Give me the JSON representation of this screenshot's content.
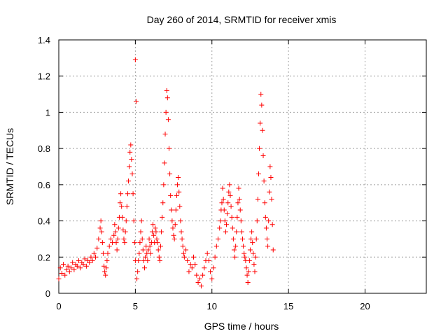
{
  "chart_data": {
    "type": "scatter",
    "title": "Day 260 of 2014, SRMTID for receiver xmis",
    "xlabel": "GPS time / hours",
    "ylabel": "SRMTID / TECUs",
    "xlim": [
      0,
      24
    ],
    "ylim": [
      0,
      1.4
    ],
    "xticks": [
      0,
      5,
      10,
      15,
      20
    ],
    "xtick_labels": [
      "0",
      "5",
      "10",
      "15",
      "20"
    ],
    "yticks": [
      0,
      0.2,
      0.4,
      0.6,
      0.8,
      1.0,
      1.2,
      1.4
    ],
    "ytick_labels": [
      "0",
      "0.2",
      "0.4",
      "0.6",
      "0.8",
      "1",
      "1.2",
      "1.4"
    ],
    "grid": true,
    "marker": "+",
    "color": "#ff0000",
    "series": [
      {
        "name": "SRMTID",
        "x": [
          0.0,
          0.1,
          0.2,
          0.3,
          0.4,
          0.5,
          0.6,
          0.7,
          0.8,
          0.9,
          1.0,
          1.1,
          1.2,
          1.3,
          1.4,
          1.5,
          1.6,
          1.7,
          1.8,
          1.9,
          2.0,
          2.1,
          2.2,
          2.3,
          2.4,
          2.5,
          2.6,
          2.7,
          2.75,
          2.8,
          2.85,
          2.9,
          2.95,
          3.0,
          3.05,
          3.1,
          3.15,
          3.2,
          3.3,
          3.4,
          3.5,
          3.6,
          3.65,
          3.7,
          3.75,
          3.8,
          3.85,
          3.9,
          3.95,
          4.0,
          4.05,
          4.1,
          4.15,
          4.2,
          4.25,
          4.3,
          4.35,
          4.4,
          4.45,
          4.5,
          4.55,
          4.6,
          4.65,
          4.7,
          4.75,
          4.8,
          4.85,
          4.9,
          4.95,
          5.0,
          5.0,
          5.05,
          5.1,
          5.15,
          5.2,
          5.25,
          5.3,
          5.35,
          5.4,
          5.45,
          5.5,
          5.55,
          5.6,
          5.65,
          5.7,
          5.75,
          5.8,
          5.85,
          5.9,
          5.95,
          6.0,
          6.05,
          6.1,
          6.15,
          6.2,
          6.25,
          6.3,
          6.35,
          6.4,
          6.45,
          6.5,
          6.55,
          6.6,
          6.65,
          6.7,
          6.75,
          6.8,
          6.85,
          6.9,
          6.95,
          7.0,
          7.05,
          7.1,
          7.15,
          7.2,
          7.25,
          7.3,
          7.35,
          7.4,
          7.45,
          7.5,
          7.55,
          7.6,
          7.65,
          7.7,
          7.75,
          7.8,
          7.85,
          7.9,
          7.95,
          8.0,
          8.05,
          8.1,
          8.15,
          8.2,
          8.3,
          8.4,
          8.5,
          8.6,
          8.7,
          8.8,
          8.9,
          9.0,
          9.1,
          9.2,
          9.3,
          9.4,
          9.5,
          9.6,
          9.7,
          9.8,
          9.9,
          10.0,
          10.1,
          10.2,
          10.3,
          10.4,
          10.5,
          10.55,
          10.6,
          10.65,
          10.7,
          10.75,
          10.8,
          10.85,
          10.9,
          10.95,
          11.0,
          11.05,
          11.1,
          11.15,
          11.2,
          11.25,
          11.3,
          11.35,
          11.4,
          11.45,
          11.5,
          11.55,
          11.6,
          11.65,
          11.7,
          11.75,
          11.8,
          11.85,
          11.9,
          11.95,
          12.0,
          12.05,
          12.1,
          12.15,
          12.2,
          12.25,
          12.3,
          12.35,
          12.4,
          12.45,
          12.5,
          12.55,
          12.6,
          12.65,
          12.7,
          12.75,
          12.8,
          12.85,
          12.9,
          12.95,
          13.0,
          13.05,
          13.1,
          13.15,
          13.2,
          13.25,
          13.3,
          13.35,
          13.4,
          13.45,
          13.5,
          13.55,
          13.6,
          13.65,
          13.7,
          13.75,
          13.8,
          13.85,
          13.9,
          13.95,
          14.0
        ],
        "y": [
          0.08,
          0.14,
          0.11,
          0.16,
          0.1,
          0.13,
          0.15,
          0.12,
          0.14,
          0.17,
          0.13,
          0.16,
          0.15,
          0.18,
          0.14,
          0.17,
          0.16,
          0.19,
          0.15,
          0.18,
          0.17,
          0.2,
          0.18,
          0.22,
          0.2,
          0.25,
          0.3,
          0.36,
          0.4,
          0.34,
          0.28,
          0.22,
          0.15,
          0.12,
          0.1,
          0.14,
          0.18,
          0.22,
          0.26,
          0.3,
          0.28,
          0.32,
          0.38,
          0.34,
          0.28,
          0.24,
          0.3,
          0.36,
          0.42,
          0.5,
          0.55,
          0.48,
          0.42,
          0.35,
          0.3,
          0.28,
          0.34,
          0.4,
          0.48,
          0.55,
          0.62,
          0.7,
          0.78,
          0.82,
          0.74,
          0.66,
          0.55,
          0.4,
          0.28,
          0.18,
          1.29,
          1.06,
          0.08,
          0.12,
          0.18,
          0.22,
          0.28,
          0.34,
          0.4,
          0.3,
          0.24,
          0.18,
          0.14,
          0.2,
          0.26,
          0.22,
          0.18,
          0.24,
          0.3,
          0.26,
          0.22,
          0.28,
          0.34,
          0.38,
          0.32,
          0.28,
          0.36,
          0.34,
          0.3,
          0.28,
          0.24,
          0.2,
          0.18,
          0.26,
          0.34,
          0.42,
          0.5,
          0.6,
          0.72,
          0.88,
          1.0,
          1.12,
          1.08,
          0.96,
          0.8,
          0.66,
          0.54,
          0.46,
          0.4,
          0.36,
          0.32,
          0.3,
          0.38,
          0.46,
          0.54,
          0.6,
          0.64,
          0.56,
          0.48,
          0.4,
          0.34,
          0.3,
          0.26,
          0.22,
          0.2,
          0.24,
          0.18,
          0.12,
          0.16,
          0.14,
          0.2,
          0.16,
          0.1,
          0.06,
          0.08,
          0.04,
          0.1,
          0.14,
          0.18,
          0.22,
          0.18,
          0.12,
          0.08,
          0.14,
          0.2,
          0.26,
          0.3,
          0.36,
          0.4,
          0.46,
          0.5,
          0.58,
          0.52,
          0.46,
          0.4,
          0.34,
          0.38,
          0.44,
          0.5,
          0.56,
          0.6,
          0.54,
          0.48,
          0.42,
          0.36,
          0.3,
          0.24,
          0.2,
          0.26,
          0.34,
          0.42,
          0.5,
          0.58,
          0.52,
          0.46,
          0.4,
          0.34,
          0.3,
          0.26,
          0.22,
          0.2,
          0.18,
          0.14,
          0.1,
          0.06,
          0.12,
          0.18,
          0.24,
          0.3,
          0.34,
          0.28,
          0.22,
          0.16,
          0.12,
          0.2,
          0.3,
          0.4,
          0.52,
          0.66,
          0.8,
          0.94,
          1.1,
          1.04,
          0.9,
          0.76,
          0.62,
          0.5,
          0.42,
          0.36,
          0.3,
          0.26,
          0.4,
          0.56,
          0.7,
          0.64,
          0.52,
          0.38,
          0.24
        ]
      }
    ]
  }
}
